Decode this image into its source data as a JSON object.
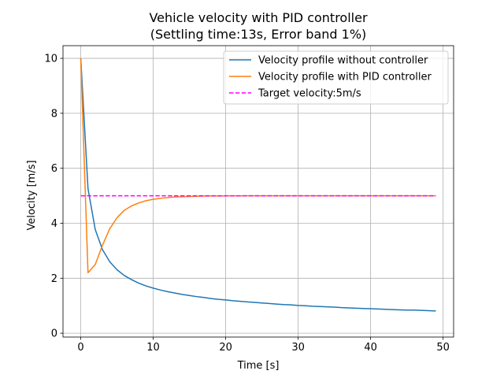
{
  "chart_data": {
    "type": "line",
    "title": "Vehicle velocity with PID controller",
    "subtitle": "(Settling time:13s, Error band 1%)",
    "xlabel": "Time [s]",
    "ylabel": "Velocity [m/s]",
    "xlim": [
      -2.45,
      51.45
    ],
    "ylim": [
      -0.14,
      10.46
    ],
    "xticks": [
      0,
      10,
      20,
      30,
      40,
      50
    ],
    "yticks": [
      0,
      2,
      4,
      6,
      8,
      10
    ],
    "grid": true,
    "legend_position": "upper-right",
    "series": [
      {
        "name": "Velocity profile without controller",
        "color": "#1f77b4",
        "style": "solid",
        "x": [
          0,
          1,
          2,
          3,
          4,
          5,
          6,
          7,
          8,
          9,
          10,
          11,
          12,
          13,
          14,
          15,
          16,
          17,
          18,
          19,
          20,
          21,
          22,
          23,
          24,
          25,
          26,
          27,
          28,
          29,
          30,
          31,
          32,
          33,
          34,
          35,
          36,
          37,
          38,
          39,
          40,
          41,
          42,
          43,
          44,
          45,
          46,
          47,
          48,
          49
        ],
        "y": [
          10,
          5.26,
          3.77,
          3.04,
          2.6,
          2.31,
          2.1,
          1.95,
          1.82,
          1.72,
          1.64,
          1.57,
          1.51,
          1.46,
          1.41,
          1.37,
          1.33,
          1.3,
          1.26,
          1.23,
          1.21,
          1.18,
          1.16,
          1.14,
          1.12,
          1.1,
          1.08,
          1.06,
          1.04,
          1.03,
          1.01,
          1.0,
          0.98,
          0.97,
          0.96,
          0.95,
          0.93,
          0.92,
          0.91,
          0.9,
          0.89,
          0.88,
          0.87,
          0.86,
          0.85,
          0.84,
          0.84,
          0.83,
          0.82,
          0.81
        ]
      },
      {
        "name": "Velocity profile with PID controller",
        "color": "#ff7f0e",
        "style": "solid",
        "x": [
          0,
          1,
          2,
          3,
          4,
          5,
          6,
          7,
          8,
          9,
          10,
          11,
          12,
          13,
          14,
          15,
          16,
          17,
          18,
          19,
          20,
          21,
          22,
          23,
          24,
          25,
          26,
          27,
          28,
          29,
          30,
          31,
          32,
          33,
          34,
          35,
          36,
          37,
          38,
          39,
          40,
          41,
          42,
          43,
          44,
          45,
          46,
          47,
          48,
          49
        ],
        "y": [
          10,
          2.2,
          2.5,
          3.2,
          3.8,
          4.2,
          4.47,
          4.63,
          4.74,
          4.82,
          4.87,
          4.91,
          4.935,
          4.955,
          4.965,
          4.975,
          4.982,
          4.987,
          4.99,
          4.993,
          4.995,
          4.996,
          4.997,
          4.998,
          4.998,
          4.999,
          4.999,
          4.999,
          5,
          5,
          5,
          5,
          5,
          5,
          5,
          5,
          5,
          5,
          5,
          5,
          5,
          5,
          5,
          5,
          5,
          5,
          5,
          5,
          5,
          5
        ]
      },
      {
        "name": "Target velocity:5m/s",
        "color": "#ff00ff",
        "style": "dashed",
        "x": [
          0,
          49
        ],
        "y": [
          5,
          5
        ]
      }
    ]
  }
}
